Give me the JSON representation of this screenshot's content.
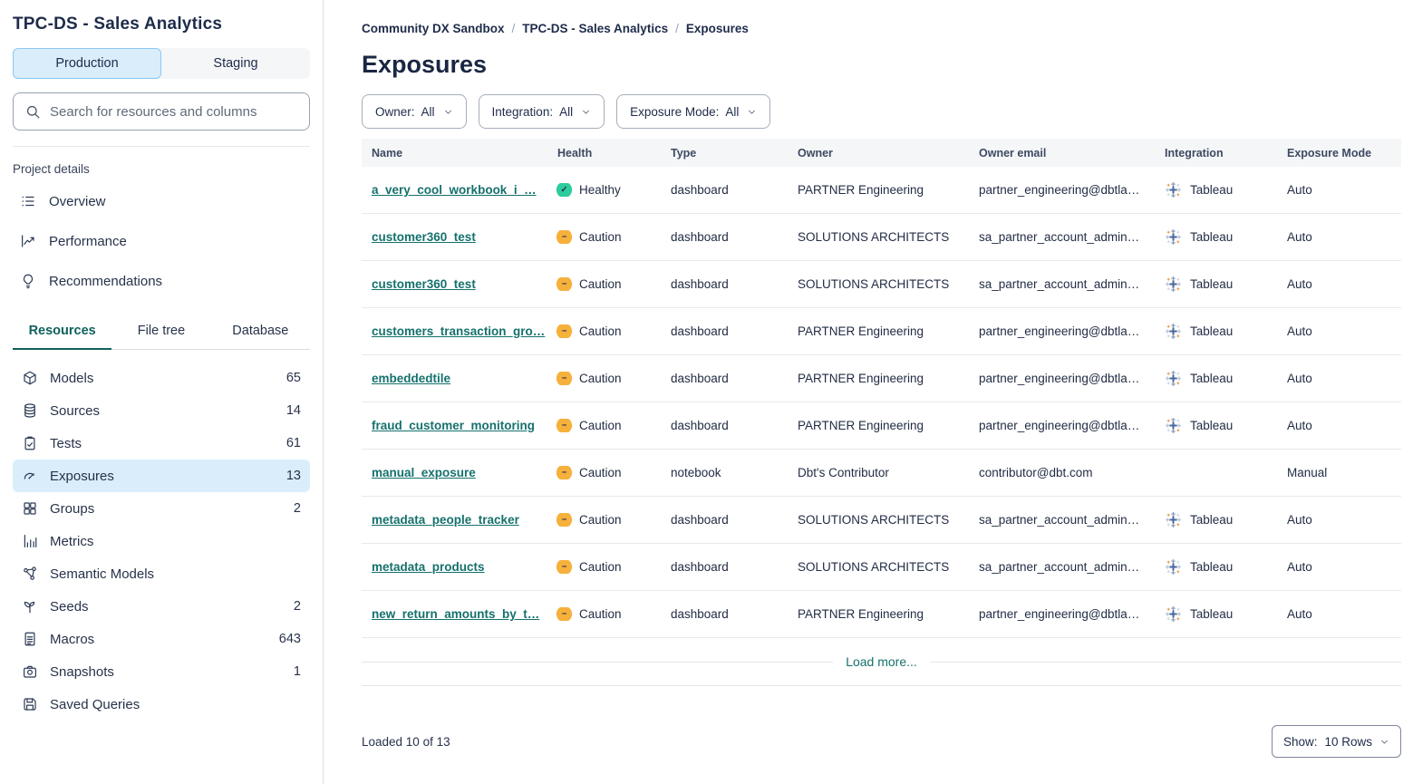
{
  "sidebar": {
    "title": "TPC-DS - Sales Analytics",
    "env_tabs": [
      {
        "label": "Production",
        "active": true
      },
      {
        "label": "Staging",
        "active": false
      }
    ],
    "search_placeholder": "Search for resources and columns",
    "section_label": "Project details",
    "project_nav": [
      {
        "label": "Overview",
        "icon": "list"
      },
      {
        "label": "Performance",
        "icon": "chart"
      },
      {
        "label": "Recommendations",
        "icon": "bulb"
      }
    ],
    "tabs": [
      {
        "label": "Resources",
        "active": true
      },
      {
        "label": "File tree",
        "active": false
      },
      {
        "label": "Database",
        "active": false
      }
    ],
    "resources": [
      {
        "label": "Models",
        "count": "65",
        "icon": "cube"
      },
      {
        "label": "Sources",
        "count": "14",
        "icon": "db"
      },
      {
        "label": "Tests",
        "count": "61",
        "icon": "clipboard"
      },
      {
        "label": "Exposures",
        "count": "13",
        "icon": "gauge",
        "active": true
      },
      {
        "label": "Groups",
        "count": "2",
        "icon": "grid"
      },
      {
        "label": "Metrics",
        "count": "",
        "icon": "bars"
      },
      {
        "label": "Semantic Models",
        "count": "",
        "icon": "network"
      },
      {
        "label": "Seeds",
        "count": "2",
        "icon": "seed"
      },
      {
        "label": "Macros",
        "count": "643",
        "icon": "doc"
      },
      {
        "label": "Snapshots",
        "count": "1",
        "icon": "camera"
      },
      {
        "label": "Saved Queries",
        "count": "",
        "icon": "save"
      }
    ]
  },
  "breadcrumb": {
    "items": [
      "Community DX Sandbox",
      "TPC-DS - Sales Analytics",
      "Exposures"
    ],
    "separator": "/"
  },
  "page": {
    "title": "Exposures"
  },
  "filters": [
    {
      "label": "Owner:",
      "value": "All"
    },
    {
      "label": "Integration:",
      "value": "All"
    },
    {
      "label": "Exposure Mode:",
      "value": "All"
    }
  ],
  "table": {
    "columns": [
      "Name",
      "Health",
      "Type",
      "Owner",
      "Owner email",
      "Integration",
      "Exposure Mode"
    ],
    "rows": [
      {
        "name": "a_very_cool_workbook_i_…",
        "health": "Healthy",
        "health_status": "healthy",
        "type": "dashboard",
        "owner": "PARTNER Engineering",
        "email": "partner_engineering@dbtla…",
        "integration": "Tableau",
        "mode": "Auto"
      },
      {
        "name": "customer360_test",
        "health": "Caution",
        "health_status": "caution",
        "type": "dashboard",
        "owner": "SOLUTIONS ARCHITECTS",
        "email": "sa_partner_account_admin…",
        "integration": "Tableau",
        "mode": "Auto"
      },
      {
        "name": "customer360_test",
        "health": "Caution",
        "health_status": "caution",
        "type": "dashboard",
        "owner": "SOLUTIONS ARCHITECTS",
        "email": "sa_partner_account_admin…",
        "integration": "Tableau",
        "mode": "Auto"
      },
      {
        "name": "customers_transaction_gro…",
        "health": "Caution",
        "health_status": "caution",
        "type": "dashboard",
        "owner": "PARTNER Engineering",
        "email": "partner_engineering@dbtla…",
        "integration": "Tableau",
        "mode": "Auto"
      },
      {
        "name": "embeddedtile",
        "health": "Caution",
        "health_status": "caution",
        "type": "dashboard",
        "owner": "PARTNER Engineering",
        "email": "partner_engineering@dbtla…",
        "integration": "Tableau",
        "mode": "Auto"
      },
      {
        "name": "fraud_customer_monitoring",
        "health": "Caution",
        "health_status": "caution",
        "type": "dashboard",
        "owner": "PARTNER Engineering",
        "email": "partner_engineering@dbtla…",
        "integration": "Tableau",
        "mode": "Auto"
      },
      {
        "name": "manual_exposure",
        "health": "Caution",
        "health_status": "caution",
        "type": "notebook",
        "owner": "Dbt's Contributor",
        "email": "contributor@dbt.com",
        "integration": "",
        "mode": "Manual"
      },
      {
        "name": "metadata_people_tracker",
        "health": "Caution",
        "health_status": "caution",
        "type": "dashboard",
        "owner": "SOLUTIONS ARCHITECTS",
        "email": "sa_partner_account_admin…",
        "integration": "Tableau",
        "mode": "Auto"
      },
      {
        "name": "metadata_products",
        "health": "Caution",
        "health_status": "caution",
        "type": "dashboard",
        "owner": "SOLUTIONS ARCHITECTS",
        "email": "sa_partner_account_admin…",
        "integration": "Tableau",
        "mode": "Auto"
      },
      {
        "name": "new_return_amounts_by_t…",
        "health": "Caution",
        "health_status": "caution",
        "type": "dashboard",
        "owner": "PARTNER Engineering",
        "email": "partner_engineering@dbtla…",
        "integration": "Tableau",
        "mode": "Auto"
      }
    ],
    "load_more": "Load more..."
  },
  "footer": {
    "loaded": "Loaded 10 of 13",
    "show_label": "Show:",
    "show_value": "10 Rows"
  },
  "icons": {
    "health_glyphs": {
      "healthy": "✓",
      "caution": "−"
    },
    "names": [
      "search-icon",
      "list-icon",
      "chart-icon",
      "bulb-icon",
      "cube-icon",
      "database-icon",
      "clipboard-icon",
      "gauge-icon",
      "grid-icon",
      "bars-icon",
      "network-icon",
      "seed-icon",
      "doc-icon",
      "camera-icon",
      "save-icon",
      "chevron-down-icon",
      "tableau-icon",
      "healthy-badge-icon",
      "caution-badge-icon"
    ]
  },
  "colors": {
    "link_teal": "#15716c",
    "active_tab_teal": "#0e615c",
    "healthy_green": "#2ccc9c",
    "caution_orange": "#f6b13c",
    "selected_blue_bg": "#d9edfb",
    "header_row_bg": "#f5f6f8",
    "text_navy": "#1e2b4a"
  }
}
